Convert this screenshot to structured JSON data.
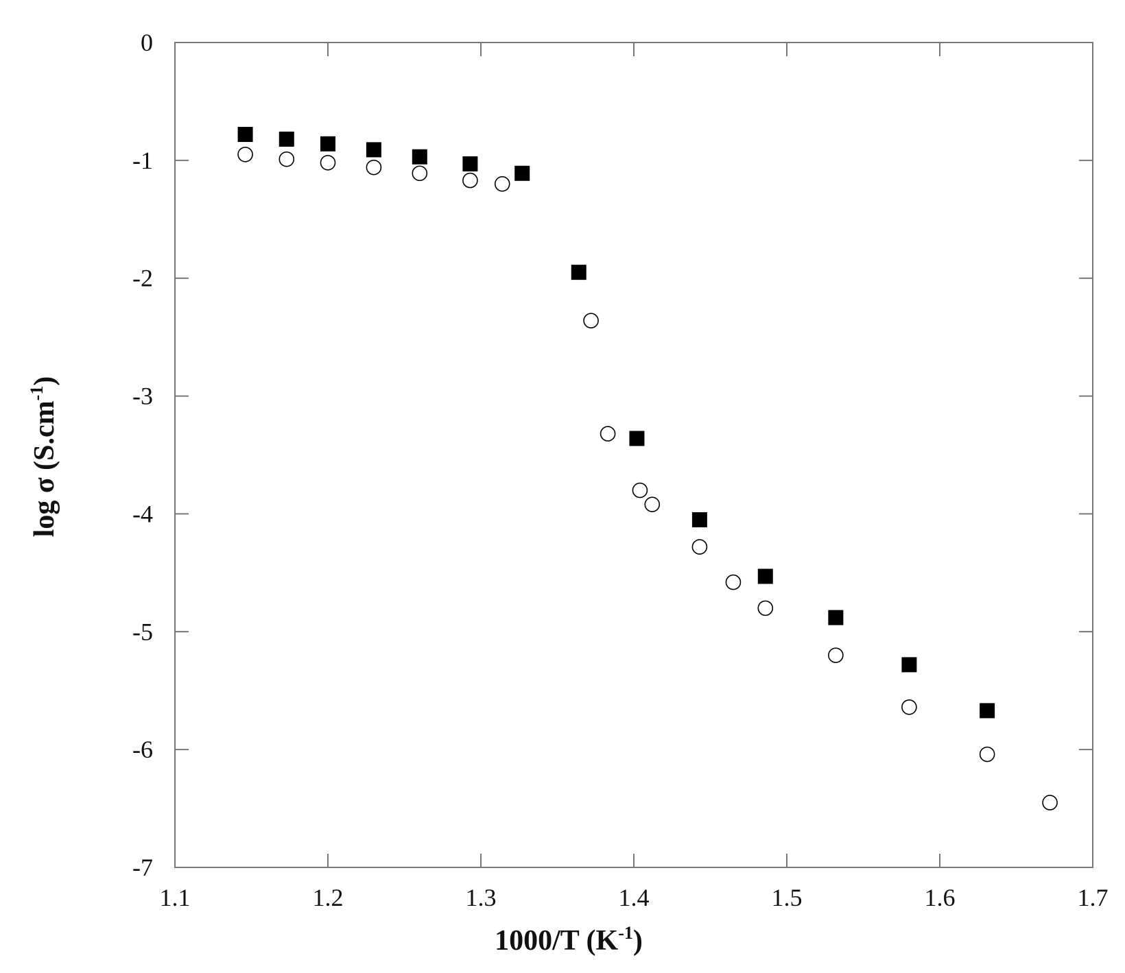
{
  "chart_data": {
    "type": "scatter",
    "title": "",
    "xlabel": {
      "base": "1000/T (K",
      "sup": "-1",
      "tail": ")"
    },
    "ylabel": {
      "base": "log σ (S.cm",
      "sup": "-1",
      "tail": ")"
    },
    "xlim": [
      1.1,
      1.7
    ],
    "ylim": [
      -7,
      0
    ],
    "x_ticks": [
      1.1,
      1.2,
      1.3,
      1.4,
      1.5,
      1.6,
      1.7
    ],
    "x_tick_labels": [
      "1.1",
      "1.2",
      "1.3",
      "1.4",
      "1.5",
      "1.6",
      "1.7"
    ],
    "y_ticks": [
      0,
      -1,
      -2,
      -3,
      -4,
      -5,
      -6,
      -7
    ],
    "y_tick_labels": [
      "0",
      "-1",
      "-2",
      "-3",
      "-4",
      "-5",
      "-6",
      "-7"
    ],
    "grid": false,
    "series": [
      {
        "marker": "filled-square",
        "color": "#000000",
        "points": [
          [
            1.146,
            -0.78
          ],
          [
            1.173,
            -0.82
          ],
          [
            1.2,
            -0.86
          ],
          [
            1.23,
            -0.91
          ],
          [
            1.26,
            -0.97
          ],
          [
            1.293,
            -1.03
          ],
          [
            1.327,
            -1.11
          ],
          [
            1.364,
            -1.95
          ],
          [
            1.402,
            -3.36
          ],
          [
            1.443,
            -4.05
          ],
          [
            1.486,
            -4.53
          ],
          [
            1.532,
            -4.88
          ],
          [
            1.58,
            -5.28
          ],
          [
            1.631,
            -5.67
          ]
        ]
      },
      {
        "marker": "open-circle",
        "color": "#000000",
        "points": [
          [
            1.146,
            -0.95
          ],
          [
            1.173,
            -0.99
          ],
          [
            1.2,
            -1.02
          ],
          [
            1.23,
            -1.06
          ],
          [
            1.26,
            -1.11
          ],
          [
            1.293,
            -1.17
          ],
          [
            1.314,
            -1.2
          ],
          [
            1.372,
            -2.36
          ],
          [
            1.383,
            -3.32
          ],
          [
            1.404,
            -3.8
          ],
          [
            1.412,
            -3.92
          ],
          [
            1.443,
            -4.28
          ],
          [
            1.465,
            -4.58
          ],
          [
            1.486,
            -4.8
          ],
          [
            1.532,
            -5.2
          ],
          [
            1.58,
            -5.64
          ],
          [
            1.631,
            -6.04
          ],
          [
            1.672,
            -6.45
          ]
        ]
      }
    ]
  }
}
